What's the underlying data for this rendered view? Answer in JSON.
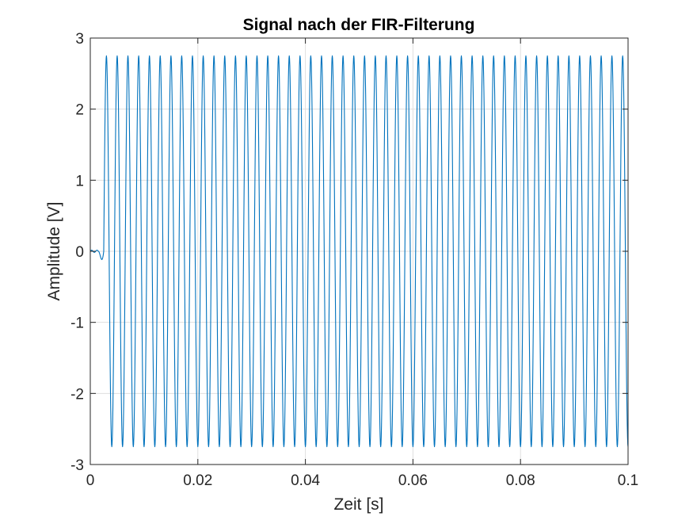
{
  "chart_data": {
    "type": "line",
    "title": "Signal nach der FIR-Filterung",
    "xlabel": "Zeit [s]",
    "ylabel": "Amplitude [V]",
    "xlim": [
      0,
      0.1
    ],
    "ylim": [
      -3,
      3
    ],
    "x_ticks": [
      0,
      0.02,
      0.04,
      0.06,
      0.08,
      0.1
    ],
    "x_tick_labels": [
      "0",
      "0.02",
      "0.04",
      "0.06",
      "0.08",
      "0.1"
    ],
    "y_ticks": [
      -3,
      -2,
      -1,
      0,
      1,
      2,
      3
    ],
    "y_tick_labels": [
      "-3",
      "-2",
      "-1",
      "0",
      "1",
      "2",
      "3"
    ],
    "grid": true,
    "legend": "none",
    "line_color": "#0072BD",
    "series": [
      {
        "signal": {
          "sample_rate_hz": 20000,
          "frequency_hz": 500,
          "amplitude_v": 2.75,
          "filter_delay_s": 0.0025,
          "t_end_s": 0.1
        }
      }
    ]
  }
}
